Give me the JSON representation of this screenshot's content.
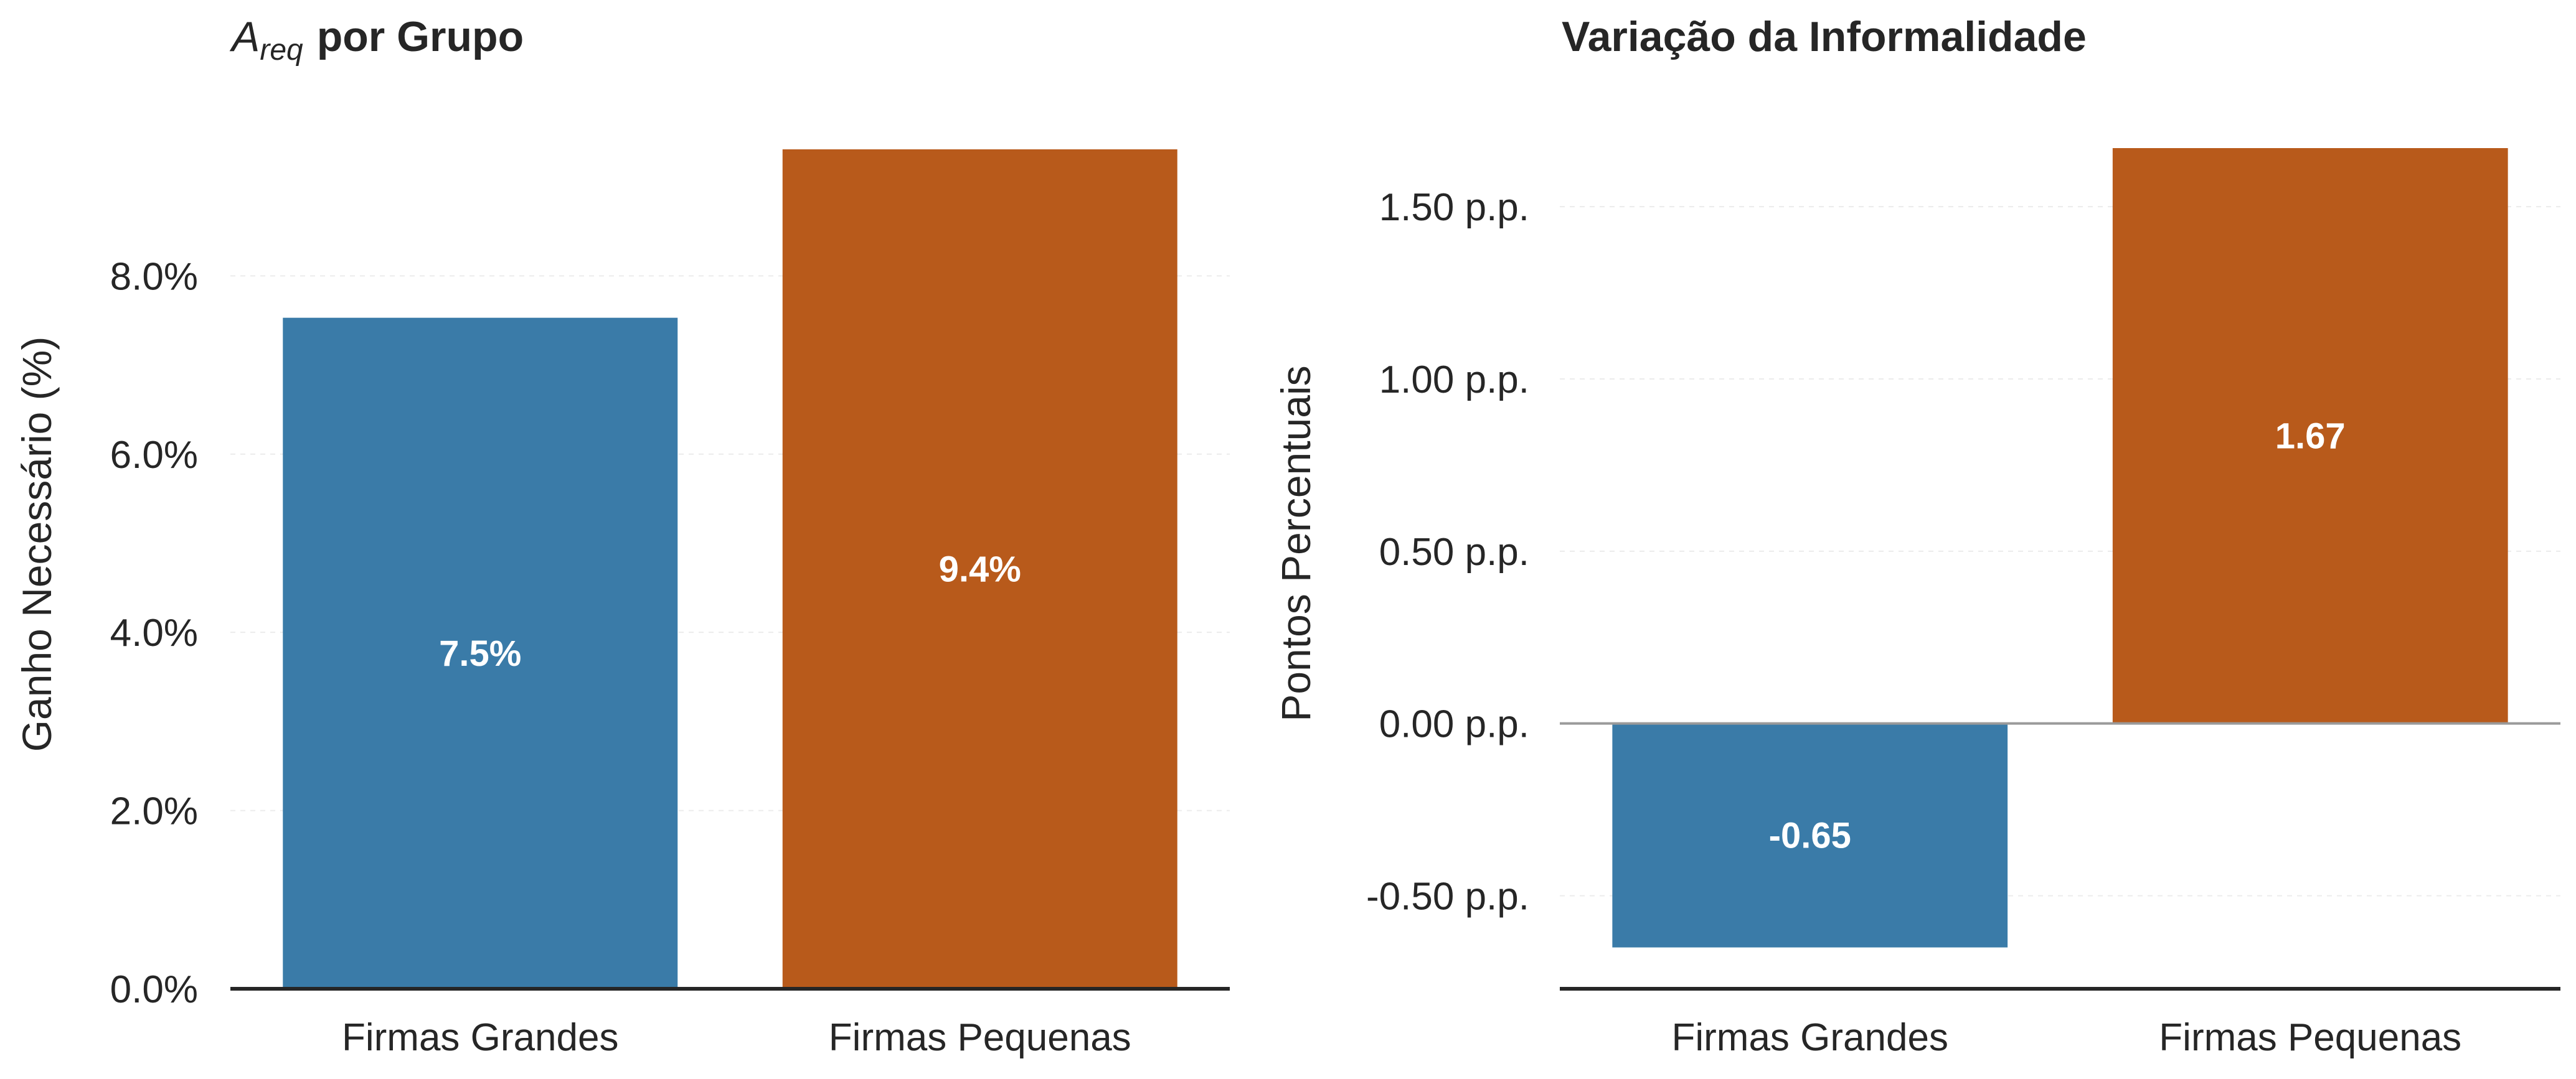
{
  "chart_data": [
    {
      "type": "bar",
      "title_math": "A",
      "title_math_sub": "req",
      "title": "por Grupo",
      "xlabel": "",
      "ylabel": "Ganho Necessário (%)",
      "categories": [
        "Firmas Grandes",
        "Firmas Pequenas"
      ],
      "values": [
        7.53,
        9.42
      ],
      "value_labels": [
        "7.5%",
        "9.4%"
      ],
      "colors": [
        "#3a7ba8",
        "#b85a1b"
      ],
      "ylim": [
        0,
        9.42
      ],
      "yticks": [
        0,
        2,
        4,
        6,
        8
      ],
      "ytick_labels": [
        "0.0%",
        "2.0%",
        "4.0%",
        "6.0%",
        "8.0%"
      ],
      "grid": true
    },
    {
      "type": "bar",
      "title": "Variação da Informalidade",
      "xlabel": "",
      "ylabel": "Pontos Percentuais",
      "categories": [
        "Firmas Grandes",
        "Firmas Pequenas"
      ],
      "values": [
        -0.65,
        1.67
      ],
      "value_labels": [
        "-0.65",
        "1.67"
      ],
      "colors": [
        "#3a7ba8",
        "#b85a1b"
      ],
      "ylim": [
        -0.77,
        1.67
      ],
      "yticks": [
        -0.5,
        0,
        0.5,
        1.0,
        1.5
      ],
      "ytick_labels": [
        "-0.50 p.p.",
        "0.00 p.p.",
        "0.50 p.p.",
        "1.00 p.p.",
        "1.50 p.p."
      ],
      "zero_line": true,
      "grid": true
    }
  ]
}
